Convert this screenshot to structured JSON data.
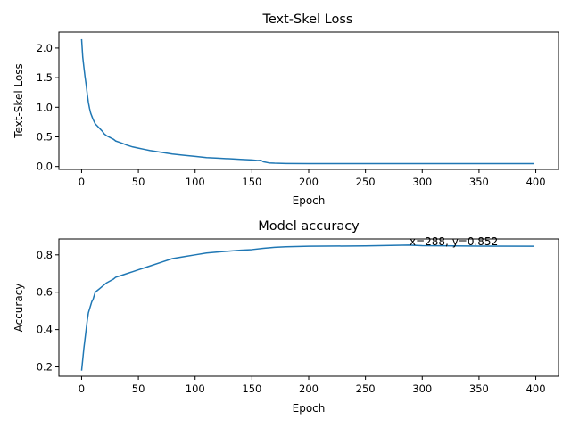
{
  "chart_data": [
    {
      "type": "line",
      "title": "Text-Skel Loss",
      "xlabel": "Epoch",
      "ylabel": "Text-Skel Loss",
      "xlim": [
        -20,
        420
      ],
      "ylim": [
        -0.05,
        2.27
      ],
      "xticks": [
        0,
        50,
        100,
        150,
        200,
        250,
        300,
        350,
        400
      ],
      "xtick_labels": [
        "0",
        "50",
        "100",
        "150",
        "200",
        "250",
        "300",
        "350",
        "400"
      ],
      "yticks": [
        0.0,
        0.5,
        1.0,
        1.5,
        2.0
      ],
      "ytick_labels": [
        "0.0",
        "0.5",
        "1.0",
        "1.5",
        "2.0"
      ],
      "grid": false,
      "series": [
        {
          "color": "#1f77b4",
          "x": [
            0,
            1,
            2,
            3,
            4,
            5,
            6,
            7,
            8,
            10,
            12,
            14,
            16,
            18,
            20,
            22,
            25,
            28,
            30,
            33,
            36,
            40,
            45,
            50,
            55,
            60,
            70,
            80,
            90,
            100,
            110,
            120,
            130,
            140,
            150,
            155,
            158,
            160,
            165,
            170,
            180,
            200,
            250,
            300,
            350,
            398
          ],
          "values": [
            2.15,
            1.85,
            1.68,
            1.52,
            1.38,
            1.22,
            1.08,
            0.98,
            0.9,
            0.8,
            0.72,
            0.68,
            0.64,
            0.6,
            0.55,
            0.52,
            0.49,
            0.46,
            0.43,
            0.41,
            0.39,
            0.36,
            0.33,
            0.31,
            0.29,
            0.27,
            0.24,
            0.21,
            0.19,
            0.17,
            0.15,
            0.14,
            0.13,
            0.12,
            0.11,
            0.1,
            0.105,
            0.08,
            0.06,
            0.055,
            0.05,
            0.048,
            0.047,
            0.047,
            0.047,
            0.047
          ]
        }
      ]
    },
    {
      "type": "line",
      "title": "Model accuracy",
      "xlabel": "Epoch",
      "ylabel": "Accuracy",
      "xlim": [
        -20,
        420
      ],
      "ylim": [
        0.15,
        0.885
      ],
      "xticks": [
        0,
        50,
        100,
        150,
        200,
        250,
        300,
        350,
        400
      ],
      "xtick_labels": [
        "0",
        "50",
        "100",
        "150",
        "200",
        "250",
        "300",
        "350",
        "400"
      ],
      "yticks": [
        0.2,
        0.4,
        0.6,
        0.8
      ],
      "ytick_labels": [
        "0.2",
        "0.4",
        "0.6",
        "0.8"
      ],
      "grid": false,
      "annotation": {
        "text": "x=288, y=0.852",
        "x": 288,
        "y": 0.852
      },
      "series": [
        {
          "color": "#1f77b4",
          "x": [
            0,
            1,
            2,
            3,
            4,
            5,
            6,
            7,
            8,
            9,
            10,
            12,
            14,
            16,
            18,
            20,
            22,
            25,
            28,
            30,
            35,
            40,
            45,
            50,
            55,
            60,
            70,
            80,
            90,
            100,
            110,
            120,
            130,
            140,
            150,
            160,
            170,
            180,
            200,
            250,
            288,
            300,
            350,
            398
          ],
          "values": [
            0.18,
            0.24,
            0.3,
            0.35,
            0.4,
            0.45,
            0.49,
            0.51,
            0.53,
            0.55,
            0.56,
            0.6,
            0.61,
            0.62,
            0.63,
            0.64,
            0.65,
            0.66,
            0.67,
            0.68,
            0.69,
            0.7,
            0.71,
            0.72,
            0.73,
            0.74,
            0.76,
            0.78,
            0.79,
            0.8,
            0.81,
            0.815,
            0.82,
            0.825,
            0.828,
            0.835,
            0.84,
            0.843,
            0.846,
            0.848,
            0.852,
            0.849,
            0.847,
            0.846
          ]
        }
      ]
    }
  ]
}
